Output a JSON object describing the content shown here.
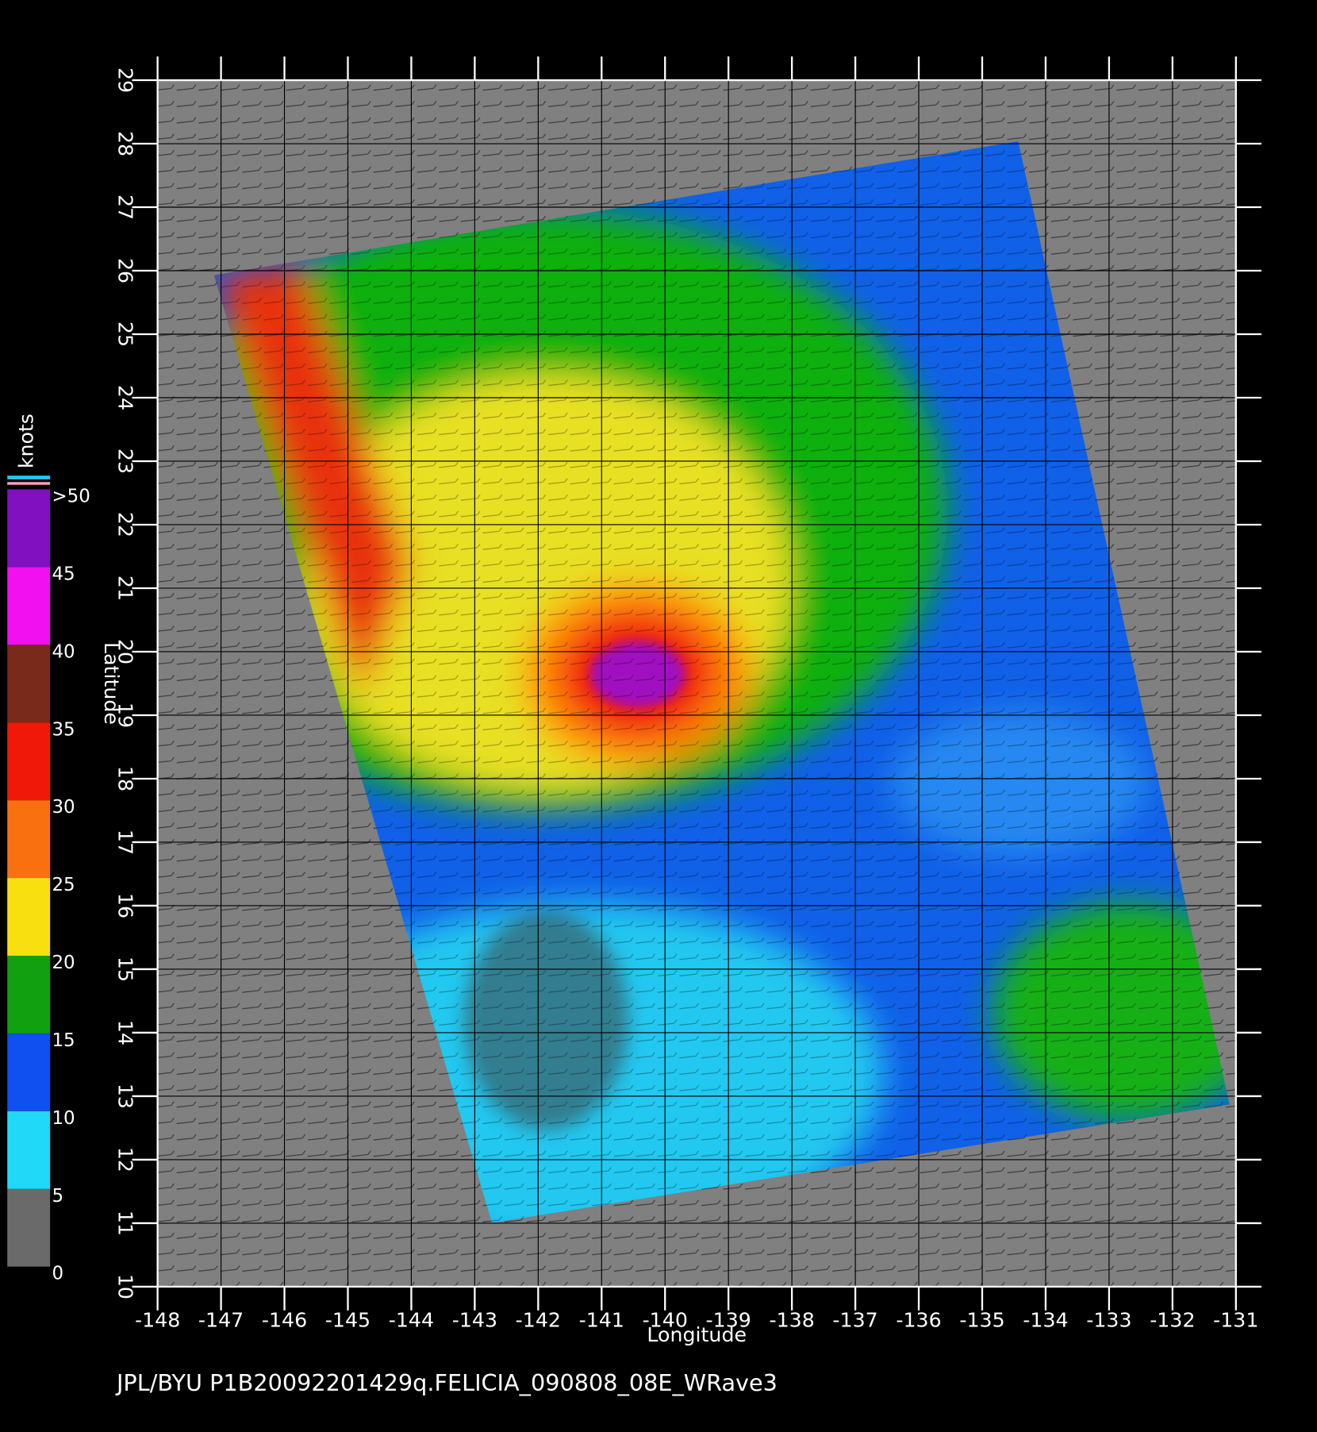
{
  "chart_data": {
    "type": "map",
    "xlabel": "Longitude",
    "ylabel": "Latitude",
    "footer": "JPL/BYU  P1B20092201429q.FELICIA_090808_08E_WRave3",
    "xlim": [
      -148,
      -131
    ],
    "ylim": [
      10,
      29
    ],
    "xticks": [
      -148,
      -147,
      -146,
      -145,
      -144,
      -143,
      -142,
      -141,
      -140,
      -139,
      -138,
      -137,
      -136,
      -135,
      -134,
      -133,
      -132,
      -131
    ],
    "yticks": [
      10,
      11,
      12,
      13,
      14,
      15,
      16,
      17,
      18,
      19,
      20,
      21,
      22,
      23,
      24,
      25,
      26,
      27,
      28,
      29
    ],
    "grid": true,
    "colorbar": {
      "label": "knots",
      "ticks": [
        0,
        5,
        10,
        15,
        20,
        25,
        30,
        35,
        40,
        45,
        {
          "value": 50,
          "label": ">50"
        }
      ],
      "colors": [
        "#6a6a6a",
        "#20d8f8",
        "#1050f0",
        "#10a010",
        "#f8e010",
        "#f87010",
        "#f01808",
        "#7a2a1a",
        "#f010f0",
        "#8010c0"
      ]
    }
  }
}
